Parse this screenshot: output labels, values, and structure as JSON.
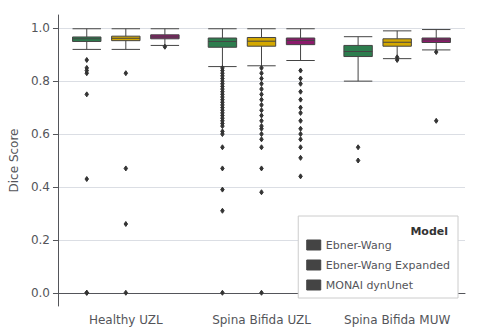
{
  "chart_data": {
    "type": "box",
    "ylabel": "Dice Score",
    "legend_title": "Model",
    "legend": "lower right",
    "grid": true,
    "categories": [
      "Healthy UZL",
      "Spina Bifida UZL",
      "Spina Bifida MUW"
    ],
    "ylim": [
      -0.05,
      1.05
    ],
    "yticks": [
      {
        "value": 0.0,
        "label": "0.0"
      },
      0.2,
      0.4,
      0.6,
      0.8,
      {
        "value": 1.0,
        "label": "1.0"
      }
    ],
    "series": [
      {
        "name": "Ebner-Wang",
        "color": "#2d7d4e",
        "values": [
          {
            "whislo": 0.92,
            "q1": 0.95,
            "median": 0.96,
            "q3": 0.967,
            "whishi": 0.998,
            "fliers": [
              0.0,
              0.0,
              0.43,
              0.75,
              0.83,
              0.84,
              0.85,
              0.88
            ]
          },
          {
            "whislo": 0.855,
            "q1": 0.928,
            "median": 0.95,
            "q3": 0.963,
            "whishi": 0.998,
            "fliers": [
              0.0,
              0.31,
              0.39,
              0.47,
              0.55,
              0.6,
              0.61,
              0.63,
              0.64,
              0.65,
              0.66,
              0.67,
              0.68,
              0.69,
              0.7,
              0.71,
              0.72,
              0.73,
              0.74,
              0.75,
              0.76,
              0.77,
              0.78,
              0.79,
              0.8,
              0.81,
              0.82,
              0.83,
              0.84,
              0.85
            ]
          },
          {
            "whislo": 0.8,
            "q1": 0.893,
            "median": 0.912,
            "q3": 0.935,
            "whishi": 0.968,
            "fliers": [
              0.5,
              0.55
            ]
          }
        ]
      },
      {
        "name": "Ebner-Wang Expanded",
        "color": "#d4a800",
        "values": [
          {
            "whislo": 0.92,
            "q1": 0.953,
            "median": 0.962,
            "q3": 0.97,
            "whishi": 0.998,
            "fliers": [
              0.0,
              0.47,
              0.83,
              0.26
            ]
          },
          {
            "whislo": 0.858,
            "q1": 0.932,
            "median": 0.951,
            "q3": 0.965,
            "whishi": 0.998,
            "fliers": [
              0.0,
              0.38,
              0.47,
              0.55,
              0.58,
              0.6,
              0.62,
              0.63,
              0.65,
              0.67,
              0.69,
              0.71,
              0.73,
              0.75,
              0.77,
              0.79,
              0.81,
              0.83,
              0.85
            ]
          },
          {
            "whislo": 0.885,
            "q1": 0.932,
            "median": 0.947,
            "q3": 0.96,
            "whishi": 0.99,
            "fliers": [
              0.88,
              0.89
            ]
          }
        ]
      },
      {
        "name": "MONAI dynUnet",
        "color": "#8b1a6b",
        "values": [
          {
            "whislo": 0.935,
            "q1": 0.96,
            "median": 0.967,
            "q3": 0.975,
            "whishi": 0.998,
            "fliers": [
              0.93
            ]
          },
          {
            "whislo": 0.878,
            "q1": 0.938,
            "median": 0.954,
            "q3": 0.963,
            "whishi": 0.998,
            "fliers": [
              0.44,
              0.51,
              0.55,
              0.58,
              0.6,
              0.62,
              0.65,
              0.68,
              0.7,
              0.73,
              0.76,
              0.79,
              0.81,
              0.84
            ]
          },
          {
            "whislo": 0.918,
            "q1": 0.946,
            "median": 0.956,
            "q3": 0.963,
            "whishi": 0.995,
            "fliers": [
              0.65,
              0.91
            ]
          }
        ]
      }
    ]
  }
}
